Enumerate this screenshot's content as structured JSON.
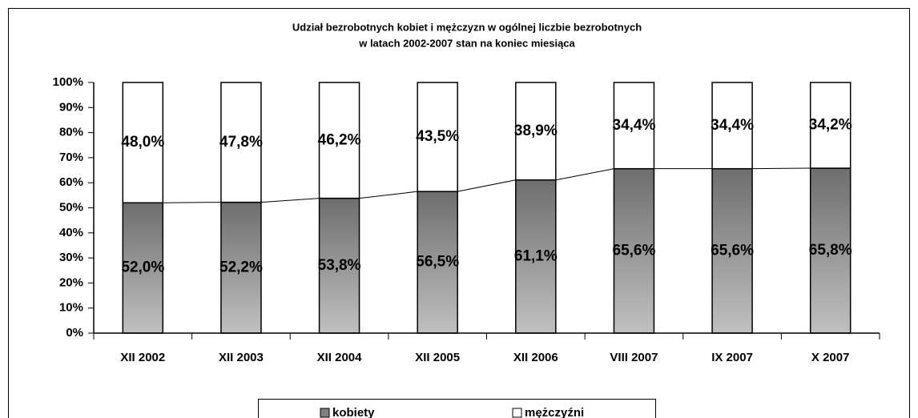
{
  "chart_data": {
    "type": "stacked_bar",
    "title": [
      "Udział bezrobotnych kobiet i mężczyzn w ogólnej liczbie  bezrobotnych",
      "w latach 2002-2007 stan na koniec miesiąca"
    ],
    "categories": [
      "XII 2002",
      "XII 2003",
      "XII 2004",
      "XII 2005",
      "XII 2006",
      "VIII 2007",
      "IX 2007",
      "X 2007"
    ],
    "series": [
      {
        "name": "kobiety",
        "color": "#808080",
        "values": [
          52.0,
          52.2,
          53.8,
          56.5,
          61.1,
          65.6,
          65.6,
          65.8
        ],
        "value_labels": [
          "52,0%",
          "52,2%",
          "53,8%",
          "56,5%",
          "61,1%",
          "65,6%",
          "65,6%",
          "65,8%"
        ]
      },
      {
        "name": "mężczyźni",
        "color": "#ffffff",
        "values": [
          48.0,
          47.8,
          46.2,
          43.5,
          38.9,
          34.4,
          34.4,
          34.2
        ],
        "value_labels": [
          "48,0%",
          "47,8%",
          "46,2%",
          "43,5%",
          "38,9%",
          "34,4%",
          "34,4%",
          "34,2%"
        ]
      }
    ],
    "ylim": [
      0,
      100
    ],
    "yticks": [
      {
        "value": 0,
        "label": "0%"
      },
      {
        "value": 10,
        "label": "10%"
      },
      {
        "value": 20,
        "label": "20%"
      },
      {
        "value": 30,
        "label": "30%"
      },
      {
        "value": 40,
        "label": "40%"
      },
      {
        "value": 50,
        "label": "50%"
      },
      {
        "value": 60,
        "label": "60%"
      },
      {
        "value": 70,
        "label": "70%"
      },
      {
        "value": 80,
        "label": "80%"
      },
      {
        "value": 90,
        "label": "90%"
      },
      {
        "value": 100,
        "label": "100%"
      }
    ],
    "legend": "bottom",
    "series_lines": true
  }
}
